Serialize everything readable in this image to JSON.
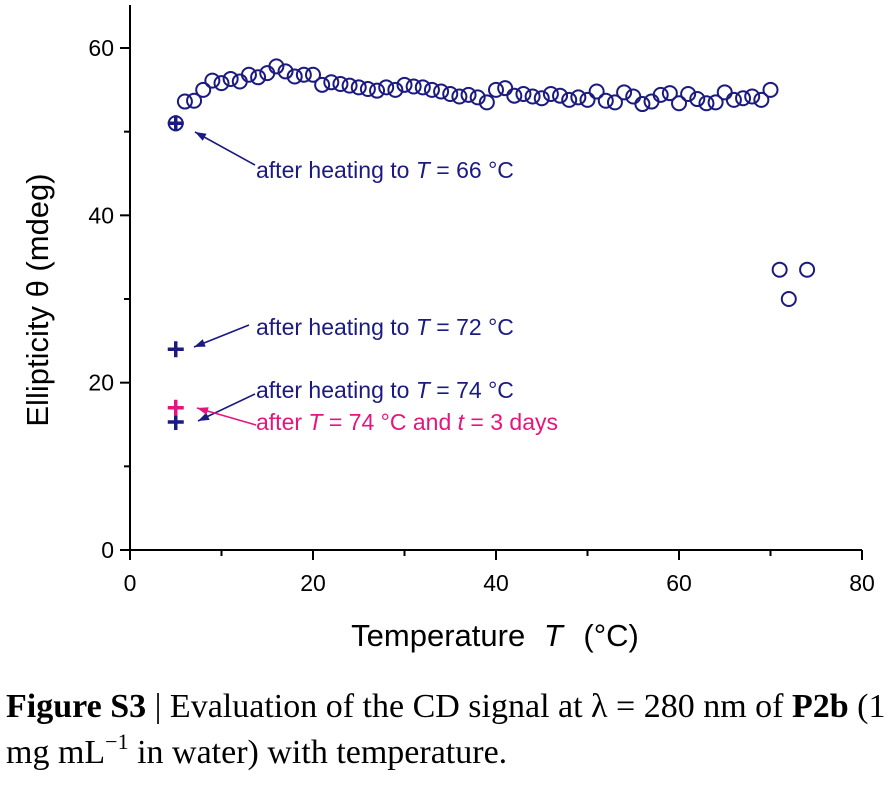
{
  "chart_data": {
    "type": "scatter",
    "xlabel": "Temperature",
    "xlabel_symbol": "T",
    "xlabel_unit": "(°C)",
    "ylabel": "Ellipticity θ  (mdeg)",
    "xlim": [
      0,
      80
    ],
    "ylim": [
      0,
      65
    ],
    "x_ticks": [
      0,
      20,
      40,
      60,
      80
    ],
    "y_ticks": [
      0,
      20,
      40,
      60
    ],
    "grid": false,
    "colors": {
      "blue": "#1a1a80",
      "magenta": "#e6157d"
    },
    "series": [
      {
        "marker": "open-circle",
        "color": "#1a1a80",
        "x": [
          5,
          6,
          7,
          8,
          9,
          10,
          11,
          12,
          13,
          14,
          15,
          16,
          17,
          18,
          19,
          20,
          21,
          22,
          23,
          24,
          25,
          26,
          27,
          28,
          29,
          30,
          31,
          32,
          33,
          34,
          35,
          36,
          37,
          38,
          39,
          40,
          41,
          42,
          43,
          44,
          45,
          46,
          47,
          48,
          49,
          50,
          51,
          52,
          53,
          54,
          55,
          56,
          57,
          58,
          59,
          60,
          61,
          62,
          63,
          64,
          65,
          66,
          67,
          68,
          69,
          70,
          71,
          72,
          74
        ],
        "y": [
          51.0,
          53.6,
          53.7,
          55.0,
          56.1,
          55.8,
          56.3,
          56.0,
          56.8,
          56.5,
          57.0,
          57.8,
          57.2,
          56.6,
          56.8,
          56.8,
          55.6,
          55.9,
          55.7,
          55.5,
          55.3,
          55.1,
          54.9,
          55.3,
          55.0,
          55.6,
          55.4,
          55.3,
          55.0,
          54.8,
          54.5,
          54.2,
          54.4,
          54.1,
          53.5,
          55.0,
          55.2,
          54.3,
          54.5,
          54.2,
          54.0,
          54.5,
          54.3,
          53.8,
          54.1,
          53.8,
          54.8,
          53.7,
          53.5,
          54.7,
          54.2,
          53.3,
          53.6,
          54.4,
          54.6,
          53.4,
          54.5,
          53.9,
          53.4,
          53.5,
          54.7,
          53.8,
          54.0,
          54.2,
          53.8,
          55.0,
          33.5,
          30.0,
          33.5
        ]
      },
      {
        "marker": "plus",
        "color": "#1a1a80",
        "x": [
          5
        ],
        "y": [
          51.0
        ]
      },
      {
        "marker": "plus",
        "color": "#1a1a80",
        "x": [
          5
        ],
        "y": [
          24.0
        ]
      },
      {
        "marker": "plus",
        "color": "#1a1a80",
        "x": [
          5
        ],
        "y": [
          15.3
        ]
      },
      {
        "marker": "plus",
        "color": "#e6157d",
        "x": [
          5
        ],
        "y": [
          17.0
        ]
      }
    ],
    "annotations": [
      {
        "prefix": "after heating to ",
        "symbol": "T",
        "suffix": " = 66 °C",
        "color": "#1a1a80",
        "target": [
          5,
          51.0
        ]
      },
      {
        "prefix": "after heating to ",
        "symbol": "T",
        "suffix": " = 72 °C",
        "color": "#1a1a80",
        "target": [
          5,
          24.0
        ]
      },
      {
        "prefix": "after heating to ",
        "symbol": "T",
        "suffix": " = 74 °C",
        "color": "#1a1a80",
        "target": [
          5,
          15.3
        ]
      },
      {
        "prefix": "after ",
        "symbol": "T",
        "suffix": " = 74 °C and ",
        "symbol2": "t",
        "suffix2": " = 3 days",
        "color": "#e6157d",
        "target": [
          5,
          17.0
        ]
      }
    ]
  },
  "caption": {
    "label": "Figure S3",
    "separator": " | ",
    "text1": "Evaluation of the CD signal at λ = 280 nm of ",
    "compound": "P2b",
    "text2": " (1 mg mL",
    "superscript": "−1",
    "text3": " in water) with temperature."
  }
}
